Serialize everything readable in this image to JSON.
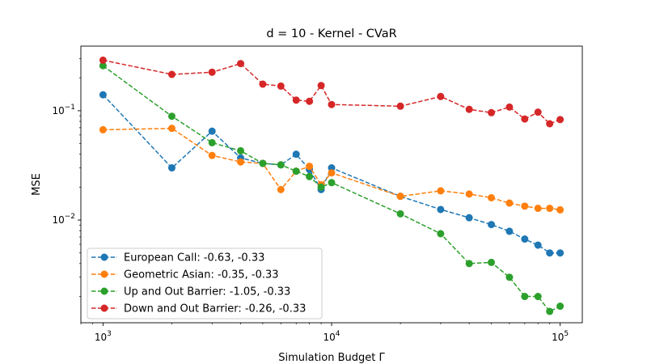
{
  "chart_data": {
    "type": "line",
    "title": "d = 10 - Kernel - CVaR",
    "xlabel": "Simulation Budget Γ",
    "ylabel": "MSE",
    "xscale": "log",
    "yscale": "log",
    "xlim": [
      800,
      125000
    ],
    "ylim": [
      0.00115,
      0.39
    ],
    "x_ticks": [
      {
        "value": 1000,
        "base": "10",
        "exp": "3"
      },
      {
        "value": 10000,
        "base": "10",
        "exp": "4"
      },
      {
        "value": 100000,
        "base": "10",
        "exp": "5"
      }
    ],
    "y_ticks": [
      {
        "value": 0.01,
        "base": "10",
        "exp": "−2"
      },
      {
        "value": 0.1,
        "base": "10",
        "exp": "−1"
      }
    ],
    "grid": false,
    "legend_position": "lower-left",
    "x": [
      1000,
      2000,
      3000,
      4000,
      5000,
      6000,
      7000,
      8000,
      9000,
      10000,
      20000,
      30000,
      40000,
      50000,
      60000,
      70000,
      80000,
      90000,
      100000
    ],
    "series": [
      {
        "name": "European Call: -0.63, -0.33",
        "color": "#1f77b4",
        "values": [
          0.14,
          0.03,
          0.065,
          0.037,
          0.033,
          0.032,
          0.04,
          0.029,
          0.019,
          0.03,
          0.0165,
          0.0125,
          0.0105,
          0.0091,
          0.0079,
          0.0067,
          0.0059,
          0.005,
          0.005
        ]
      },
      {
        "name": "Geometric Asian: -0.35, -0.33",
        "color": "#ff7f0e",
        "values": [
          0.067,
          0.069,
          0.039,
          0.034,
          0.033,
          0.019,
          0.028,
          0.031,
          0.021,
          0.027,
          0.0165,
          0.0185,
          0.0173,
          0.016,
          0.0143,
          0.0134,
          0.0128,
          0.0128,
          0.0124
        ]
      },
      {
        "name": "Up and Out Barrier: -1.05, -0.33",
        "color": "#2ca02c",
        "values": [
          0.258,
          0.089,
          0.051,
          0.043,
          0.033,
          0.032,
          0.028,
          0.025,
          0.02,
          0.022,
          0.0114,
          0.0075,
          0.004,
          0.0041,
          0.003,
          0.002,
          0.002,
          0.00146,
          0.00163
        ]
      },
      {
        "name": "Down and Out Barrier: -0.26, -0.33",
        "color": "#d62728",
        "values": [
          0.29,
          0.215,
          0.225,
          0.27,
          0.175,
          0.168,
          0.125,
          0.122,
          0.17,
          0.114,
          0.11,
          0.135,
          0.103,
          0.096,
          0.108,
          0.084,
          0.097,
          0.076,
          0.083
        ]
      }
    ]
  }
}
